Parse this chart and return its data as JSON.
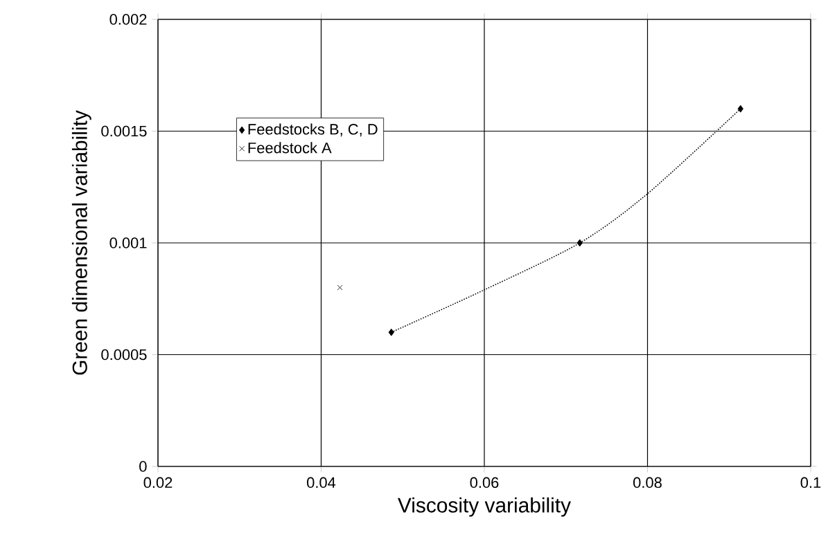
{
  "chart_data": {
    "type": "scatter",
    "xlabel": "Viscosity variability",
    "ylabel": "Green dimensional variability",
    "xlim": [
      0.02,
      0.1
    ],
    "ylim": [
      0,
      0.002
    ],
    "xticks": [
      0.02,
      0.04,
      0.06,
      0.08,
      0.1
    ],
    "yticks": [
      0,
      0.0005,
      0.001,
      0.0015,
      0.002
    ],
    "grid": true,
    "legend": "top left",
    "series": [
      {
        "name": "Feedstocks B, C, D",
        "color": "#000000",
        "marker": "diamond",
        "x": [
          0.0486,
          0.0717,
          0.0914
        ],
        "values": [
          0.0006,
          0.001,
          0.0016
        ]
      },
      {
        "name": "Feedstock A",
        "color": "#000000",
        "marker": "cross",
        "x": [
          0.0423
        ],
        "values": [
          0.0008
        ]
      },
      {
        "type": "line",
        "color": "#000000",
        "marker": "none",
        "line_style": "dotted",
        "x": [
          0.0486,
          0.06,
          0.0717,
          0.08,
          0.0914
        ],
        "values": [
          0.0006,
          0.00079,
          0.001,
          0.00122,
          0.0016
        ]
      }
    ]
  }
}
